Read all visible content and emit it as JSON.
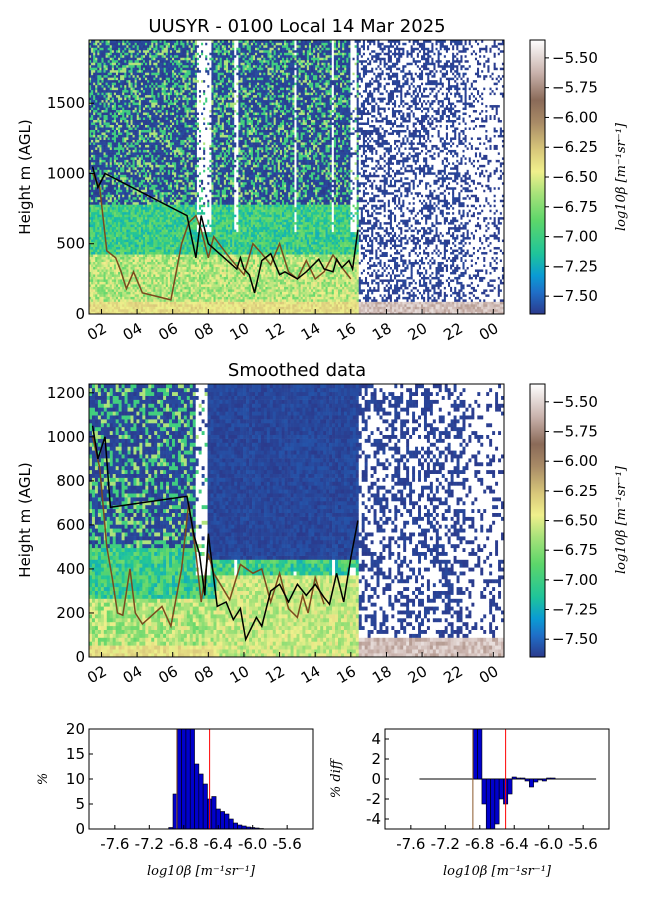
{
  "figure": {
    "top_title": "UUSYR - 0100 Local 14 Mar 2025",
    "mid_title": "Smoothed data"
  },
  "colorbar": {
    "label": "log10β [m⁻¹sr⁻¹]",
    "ticks": [
      "-5.50",
      "-5.75",
      "-6.00",
      "-6.25",
      "-6.50",
      "-6.75",
      "-7.00",
      "-7.25",
      "-7.50"
    ],
    "range": [
      -7.65,
      -5.35
    ]
  },
  "chart_data": [
    {
      "type": "heatmap",
      "title": "UUSYR - 0100 Local 14 Mar 2025",
      "xlabel": "",
      "ylabel": "Height m (AGL)",
      "x_ticks": [
        "02",
        "04",
        "06",
        "08",
        "10",
        "12",
        "14",
        "16",
        "18",
        "20",
        "22",
        "00"
      ],
      "y_ticks": [
        0,
        500,
        1000,
        1500
      ],
      "ylim": [
        0,
        1950
      ],
      "line_black": [
        [
          1.5,
          1050
        ],
        [
          1.8,
          900
        ],
        [
          2.0,
          950
        ],
        [
          2.2,
          1000
        ],
        [
          6.8,
          700
        ],
        [
          7.3,
          400
        ],
        [
          7.6,
          700
        ],
        [
          8.0,
          500
        ],
        [
          9.6,
          320
        ],
        [
          9.8,
          400
        ],
        [
          10.0,
          320
        ],
        [
          10.3,
          280
        ],
        [
          10.6,
          150
        ],
        [
          11.0,
          380
        ],
        [
          11.5,
          430
        ],
        [
          12.0,
          280
        ],
        [
          12.3,
          300
        ],
        [
          13.0,
          250
        ],
        [
          13.5,
          300
        ],
        [
          14.2,
          390
        ],
        [
          14.5,
          320
        ],
        [
          15.0,
          300
        ],
        [
          15.2,
          390
        ],
        [
          15.5,
          330
        ],
        [
          15.9,
          380
        ],
        [
          16.1,
          320
        ],
        [
          16.4,
          600
        ]
      ],
      "line_brown": [
        [
          1.5,
          1000
        ],
        [
          1.9,
          900
        ],
        [
          2.3,
          450
        ],
        [
          2.8,
          400
        ],
        [
          3.1,
          300
        ],
        [
          3.4,
          180
        ],
        [
          3.8,
          300
        ],
        [
          4.3,
          150
        ],
        [
          5.9,
          100
        ],
        [
          6.5,
          500
        ],
        [
          6.9,
          650
        ],
        [
          7.3,
          700
        ],
        [
          7.6,
          600
        ],
        [
          8.0,
          400
        ],
        [
          8.3,
          550
        ],
        [
          9.2,
          400
        ],
        [
          10.0,
          280
        ],
        [
          10.5,
          500
        ],
        [
          11.0,
          430
        ],
        [
          11.5,
          350
        ],
        [
          12.0,
          500
        ],
        [
          12.5,
          300
        ],
        [
          13.0,
          250
        ],
        [
          13.5,
          380
        ],
        [
          14.0,
          250
        ],
        [
          14.5,
          300
        ],
        [
          15.0,
          420
        ],
        [
          15.5,
          330
        ],
        [
          16.0,
          250
        ]
      ]
    },
    {
      "type": "heatmap",
      "title": "Smoothed data",
      "xlabel": "",
      "ylabel": "Height m (AGL)",
      "x_ticks": [
        "02",
        "04",
        "06",
        "08",
        "10",
        "12",
        "14",
        "16",
        "18",
        "20",
        "22",
        "00"
      ],
      "y_ticks": [
        0,
        200,
        400,
        600,
        800,
        1000,
        1200
      ],
      "ylim": [
        0,
        1240
      ],
      "line_black": [
        [
          1.5,
          1050
        ],
        [
          1.8,
          900
        ],
        [
          2.0,
          950
        ],
        [
          2.2,
          1000
        ],
        [
          2.5,
          680
        ],
        [
          6.8,
          730
        ],
        [
          7.2,
          550
        ],
        [
          7.5,
          470
        ],
        [
          7.8,
          280
        ],
        [
          8.0,
          560
        ],
        [
          8.5,
          230
        ],
        [
          9.0,
          250
        ],
        [
          9.4,
          170
        ],
        [
          9.8,
          220
        ],
        [
          10.1,
          80
        ],
        [
          10.7,
          180
        ],
        [
          11.0,
          140
        ],
        [
          11.5,
          300
        ],
        [
          12.0,
          330
        ],
        [
          12.5,
          250
        ],
        [
          13.0,
          330
        ],
        [
          13.5,
          280
        ],
        [
          14.0,
          330
        ],
        [
          14.5,
          270
        ],
        [
          14.8,
          240
        ],
        [
          15.2,
          380
        ],
        [
          15.6,
          250
        ],
        [
          16.0,
          450
        ],
        [
          16.4,
          620
        ]
      ],
      "line_brown": [
        [
          1.5,
          1000
        ],
        [
          1.9,
          860
        ],
        [
          2.3,
          500
        ],
        [
          2.6,
          360
        ],
        [
          2.9,
          200
        ],
        [
          3.2,
          190
        ],
        [
          3.6,
          400
        ],
        [
          3.9,
          200
        ],
        [
          4.3,
          150
        ],
        [
          5.4,
          230
        ],
        [
          5.9,
          140
        ],
        [
          6.5,
          400
        ],
        [
          6.9,
          700
        ],
        [
          7.3,
          470
        ],
        [
          7.6,
          250
        ],
        [
          8.0,
          470
        ],
        [
          8.3,
          380
        ],
        [
          9.2,
          260
        ],
        [
          9.8,
          420
        ],
        [
          10.5,
          380
        ],
        [
          11.0,
          400
        ],
        [
          11.5,
          250
        ],
        [
          12.0,
          380
        ],
        [
          12.5,
          220
        ],
        [
          13.0,
          180
        ],
        [
          13.3,
          280
        ],
        [
          13.6,
          200
        ],
        [
          14.0,
          360
        ],
        [
          14.5,
          240
        ]
      ]
    },
    {
      "type": "bar",
      "title": "",
      "xlabel": "log10β [m⁻¹sr⁻¹]",
      "ylabel": "%",
      "x_ticks": [
        "-7.6",
        "-7.2",
        "-6.8",
        "-6.4",
        "-6.0",
        "-5.6"
      ],
      "y_ticks": [
        0,
        5,
        10,
        15,
        20
      ],
      "xlim": [
        -7.9,
        -5.3
      ],
      "ylim": [
        0,
        20
      ],
      "bars": [
        [
          -6.95,
          0.3
        ],
        [
          -6.9,
          7.0
        ],
        [
          -6.85,
          20
        ],
        [
          -6.8,
          20
        ],
        [
          -6.75,
          20
        ],
        [
          -6.7,
          20
        ],
        [
          -6.65,
          13
        ],
        [
          -6.6,
          11
        ],
        [
          -6.55,
          9
        ],
        [
          -6.5,
          6
        ],
        [
          -6.45,
          6.5
        ],
        [
          -6.4,
          4
        ],
        [
          -6.35,
          3.5
        ],
        [
          -6.3,
          3.0
        ],
        [
          -6.25,
          2.0
        ],
        [
          -6.2,
          1.2
        ],
        [
          -6.15,
          0.8
        ],
        [
          -6.1,
          0.6
        ],
        [
          -6.05,
          0.4
        ],
        [
          -6.0,
          0.3
        ],
        [
          -5.95,
          0.2
        ],
        [
          -5.9,
          0.1
        ]
      ],
      "vline_red": -6.5,
      "vline_brown": -6.88
    },
    {
      "type": "bar",
      "title": "",
      "xlabel": "log10β [m⁻¹sr⁻¹]",
      "ylabel": "% diff",
      "x_ticks": [
        "-7.6",
        "-7.2",
        "-6.8",
        "-6.4",
        "-6.0",
        "-5.6"
      ],
      "y_ticks": [
        -4,
        -2,
        0,
        2,
        4
      ],
      "xlim": [
        -7.9,
        -5.3
      ],
      "ylim": [
        -5,
        5
      ],
      "bars": [
        [
          -6.85,
          5
        ],
        [
          -6.8,
          5
        ],
        [
          -6.75,
          -2.5
        ],
        [
          -6.7,
          -5
        ],
        [
          -6.65,
          -5
        ],
        [
          -6.6,
          -4.5
        ],
        [
          -6.55,
          -2.0
        ],
        [
          -6.5,
          -2.5
        ],
        [
          -6.45,
          -1.5
        ],
        [
          -6.4,
          0.2
        ],
        [
          -6.35,
          0.1
        ],
        [
          -6.3,
          0.1
        ],
        [
          -6.25,
          -0.2
        ],
        [
          -6.2,
          -0.8
        ],
        [
          -6.15,
          -0.3
        ],
        [
          -6.1,
          -0.1
        ],
        [
          -6.05,
          -0.2
        ],
        [
          -6.0,
          0.1
        ],
        [
          -5.95,
          0.1
        ]
      ],
      "zero_line": [
        -7.5,
        -5.45
      ],
      "vline_red": -6.5,
      "vline_brown": -6.88
    }
  ]
}
